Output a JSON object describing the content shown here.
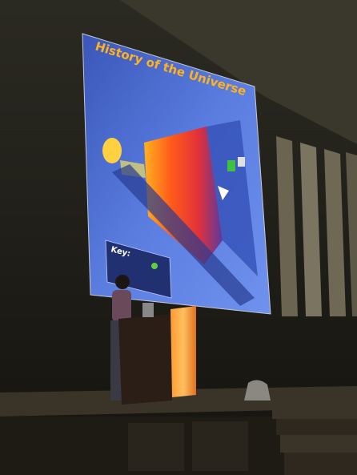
{
  "slide": {
    "title": "History of the Universe",
    "key_label": "Key:"
  }
}
